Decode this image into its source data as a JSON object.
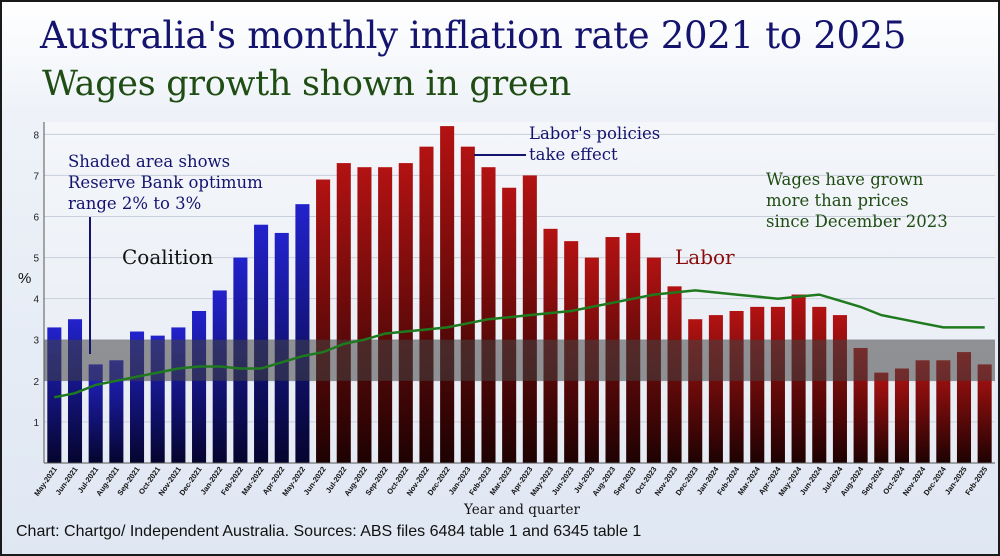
{
  "title": "Australia's monthly inflation rate 2021 to 2025",
  "subtitle": "Wages growth shown in green",
  "source": "Chart: Chartgo/ Independent Australia. Sources: ABS files 6484 table 1 and 6345 table 1",
  "colors": {
    "coalition": "#1a1ab8",
    "labor": "#a50f0f",
    "wages": "#1f7a1f",
    "band": "#444444"
  },
  "chart_data": {
    "type": "bar",
    "title": "Australia's monthly inflation rate 2021 to 2025",
    "subtitle": "Wages growth shown in green",
    "xlabel": "Year and quarter",
    "ylabel": "%",
    "ylim": [
      0,
      8.3
    ],
    "yticks": [
      1,
      2,
      3,
      4,
      5,
      6,
      7,
      8
    ],
    "grid": true,
    "categories": [
      "May-2021",
      "Jun-2021",
      "Jul-2021",
      "Aug-2021",
      "Sep-2021",
      "Oct-2021",
      "Nov-2021",
      "Dec-2021",
      "Jan-2022",
      "Feb-2022",
      "Mar-2022",
      "Apr-2022",
      "May-2022",
      "Jun-2022",
      "Jul-2022",
      "Aug-2022",
      "Sep-2022",
      "Oct-2022",
      "Nov-2022",
      "Dec-2022",
      "Jan-2023",
      "Feb-2023",
      "Mar-2023",
      "Apr-2023",
      "May-2023",
      "Jun-2023",
      "Jul-2023",
      "Aug-2023",
      "Sep-2023",
      "Oct-2023",
      "Nov-2023",
      "Dec-2023",
      "Jan-2024",
      "Feb-2024",
      "Mar-2024",
      "Apr-2024",
      "May-2024",
      "Jun-2024",
      "Jul-2024",
      "Aug-2024",
      "Sep-2024",
      "Oct-2024",
      "Nov-2024",
      "Dec-2024",
      "Jan-2025",
      "Feb-2025"
    ],
    "series": [
      {
        "name": "Monthly inflation rate",
        "type": "bar",
        "values": [
          3.3,
          3.5,
          2.4,
          2.5,
          3.2,
          3.1,
          3.3,
          3.7,
          4.2,
          5.0,
          5.8,
          5.6,
          6.3,
          6.9,
          7.3,
          7.2,
          7.2,
          7.3,
          7.7,
          8.2,
          7.7,
          7.2,
          6.7,
          7.0,
          5.7,
          5.4,
          5.0,
          5.5,
          5.6,
          5.0,
          4.3,
          3.5,
          3.6,
          3.7,
          3.8,
          3.8,
          4.1,
          3.8,
          3.6,
          2.8,
          2.2,
          2.3,
          2.5,
          2.5,
          2.7,
          2.4
        ],
        "party": [
          "Coalition",
          "Coalition",
          "Coalition",
          "Coalition",
          "Coalition",
          "Coalition",
          "Coalition",
          "Coalition",
          "Coalition",
          "Coalition",
          "Coalition",
          "Coalition",
          "Coalition",
          "Labor",
          "Labor",
          "Labor",
          "Labor",
          "Labor",
          "Labor",
          "Labor",
          "Labor",
          "Labor",
          "Labor",
          "Labor",
          "Labor",
          "Labor",
          "Labor",
          "Labor",
          "Labor",
          "Labor",
          "Labor",
          "Labor",
          "Labor",
          "Labor",
          "Labor",
          "Labor",
          "Labor",
          "Labor",
          "Labor",
          "Labor",
          "Labor",
          "Labor",
          "Labor",
          "Labor",
          "Labor",
          "Labor"
        ]
      },
      {
        "name": "Wages growth",
        "type": "line",
        "values": [
          1.6,
          1.7,
          1.9,
          2.0,
          2.1,
          2.2,
          2.3,
          2.35,
          2.35,
          2.3,
          2.3,
          2.45,
          2.6,
          2.7,
          2.9,
          3.0,
          3.15,
          3.2,
          3.25,
          3.3,
          3.4,
          3.5,
          3.55,
          3.6,
          3.65,
          3.7,
          3.8,
          3.9,
          4.0,
          4.1,
          4.15,
          4.2,
          4.15,
          4.1,
          4.05,
          4.0,
          4.05,
          4.1,
          3.95,
          3.8,
          3.6,
          3.5,
          3.4,
          3.3,
          3.3,
          3.3
        ]
      }
    ],
    "shaded_band": {
      "from": 2,
      "to": 3,
      "label": "Reserve Bank optimum range 2% to 3%"
    },
    "annotations": {
      "band_note_lines": [
        "Shaded area shows",
        "Reserve Bank optimum",
        "range 2% to 3%"
      ],
      "coalition": "Coalition",
      "labor": "Labor",
      "policies_lines": [
        "Labor's policies",
        "take effect"
      ],
      "wages_note_lines": [
        "Wages have grown",
        "more than prices",
        "since December 2023"
      ]
    }
  }
}
